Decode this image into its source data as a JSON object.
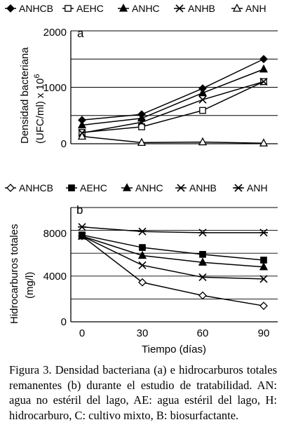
{
  "chart_data": [
    {
      "type": "line",
      "panel_label": "a",
      "ylabel": "Densidad bacteriana (UFC/ml) x 10",
      "ylabel_exponent": "6",
      "ylim": [
        0,
        2000
      ],
      "yticks": [
        "0",
        "1000",
        "2000"
      ],
      "grid": true,
      "legend_position": "top",
      "x": [
        0,
        30,
        60,
        90
      ],
      "series": [
        {
          "name": "ANHCB",
          "marker": "diamond",
          "values": [
            420,
            520,
            980,
            1500
          ]
        },
        {
          "name": "AEHC",
          "marker": "square-open",
          "values": [
            200,
            300,
            590,
            1100
          ]
        },
        {
          "name": "ANHC",
          "marker": "triangle",
          "values": [
            330,
            450,
            900,
            1320
          ]
        },
        {
          "name": "ANHB",
          "marker": "x",
          "values": [
            190,
            380,
            780,
            1100
          ]
        },
        {
          "name": "ANH",
          "marker": "triangle-open",
          "values": [
            130,
            20,
            30,
            10
          ]
        }
      ]
    },
    {
      "type": "line",
      "panel_label": "b",
      "ylabel": "Hidrocarburos totales (mg/l)",
      "xlabel": "Tiempo (días)",
      "ylim": [
        0,
        10000
      ],
      "yticks": [
        "0",
        "4000",
        "8000"
      ],
      "xticks": [
        "0",
        "30",
        "60",
        "90"
      ],
      "grid": true,
      "legend_position": "top",
      "x": [
        0,
        30,
        60,
        90
      ],
      "series": [
        {
          "name": "ANHCB",
          "marker": "diamond-open",
          "values": [
            7500,
            3450,
            2300,
            1400
          ]
        },
        {
          "name": "AEHC",
          "marker": "square",
          "values": [
            7600,
            6500,
            5900,
            5400
          ]
        },
        {
          "name": "ANHC",
          "marker": "triangle",
          "values": [
            7500,
            5800,
            5200,
            4800
          ]
        },
        {
          "name": "ANHB",
          "marker": "x",
          "values": [
            7500,
            4950,
            3900,
            3750
          ]
        },
        {
          "name": "ANH",
          "marker": "asterisk",
          "values": [
            8300,
            7900,
            7800,
            7800
          ]
        }
      ]
    }
  ],
  "caption": "Figura 3. Densidad bacteriana (a) e hidrocarburos totales remanentes (b) durante el estudio de tratabilidad. AN: agua no estéril del lago, AE: agua estéril del lago, H: hidrocarburo, C: cultivo mixto, B: biosurfactante."
}
